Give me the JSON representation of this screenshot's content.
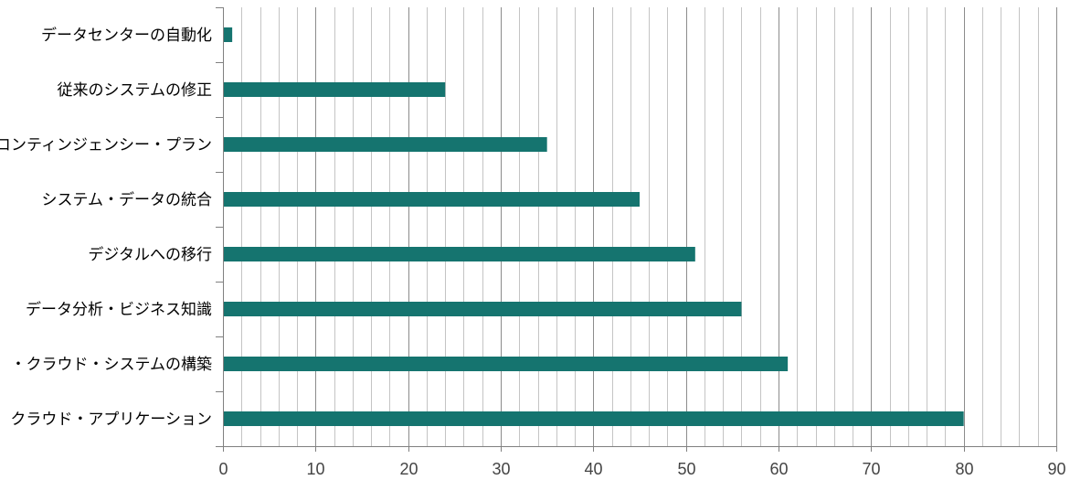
{
  "chart_data": {
    "type": "bar",
    "orientation": "horizontal",
    "categories": [
      "データセンターの自動化",
      "従来のシステムの修正",
      "コンティンジェンシー・プラン",
      "システム・データの統合",
      "デジタルへの移行",
      "データ分析・ビジネス知識",
      "・クラウド・システムの構築",
      "クラウド・アプリケーション"
    ],
    "values": [
      1,
      24,
      35,
      45,
      51,
      56,
      61,
      80
    ],
    "xlim": [
      0,
      90
    ],
    "xticks": [
      0,
      10,
      20,
      30,
      40,
      50,
      60,
      70,
      80,
      90
    ],
    "minor_step": 2,
    "title": "",
    "xlabel": "",
    "ylabel": "",
    "grid": true,
    "legend": "none",
    "bar_color": "#15746f",
    "major_grid_color": "#8c8c8c",
    "minor_grid_color": "#c4c4c4"
  }
}
